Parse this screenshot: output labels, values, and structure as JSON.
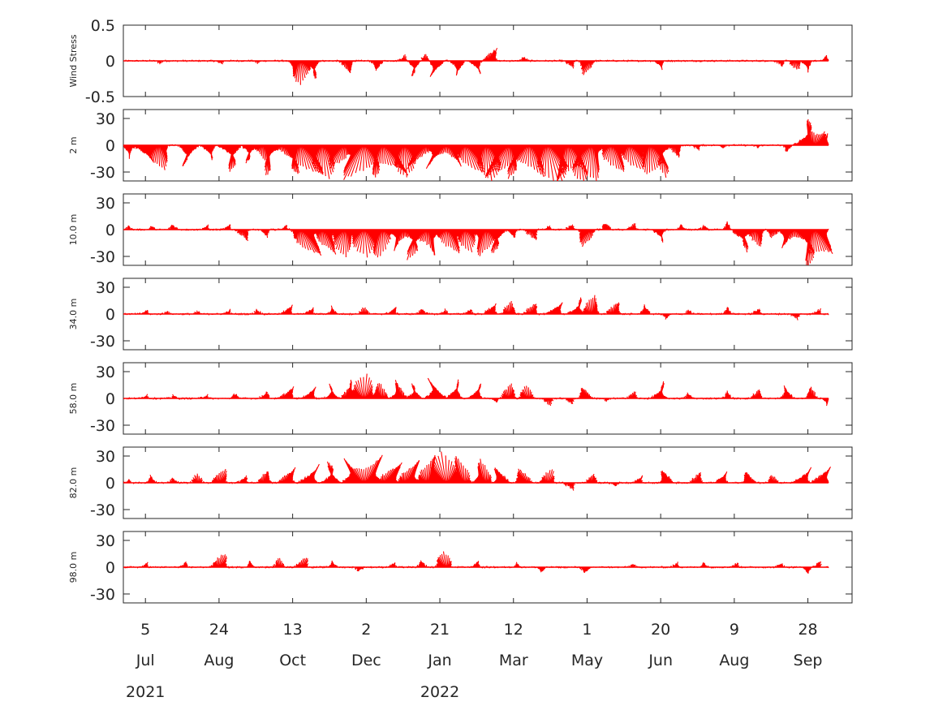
{
  "chart_data": {
    "type": "stick-vector",
    "x_axis": {
      "tick_days": [
        "5",
        "24",
        "13",
        "2",
        "21",
        "12",
        "1",
        "20",
        "9",
        "28"
      ],
      "tick_months": [
        "Jul",
        "Aug",
        "Oct",
        "Dec",
        "Jan",
        "Mar",
        "May",
        "Jun",
        "Aug",
        "Sep"
      ],
      "tick_dates": [
        "2021-07-05",
        "2021-08-24",
        "2021-10-13",
        "2021-12-02",
        "2022-01-21",
        "2022-03-12",
        "2022-05-01",
        "2022-06-20",
        "2022-08-09",
        "2022-09-28"
      ],
      "years": [
        {
          "label": "2021",
          "at": "2021-07-05"
        },
        {
          "label": "2022",
          "at": "2022-01-21"
        }
      ],
      "xlim": [
        "2021-06-20",
        "2022-10-28"
      ],
      "data_start": "2021-06-20",
      "data_end": "2022-10-12"
    },
    "color": "#ff0000",
    "panels": [
      {
        "ylabel": "Wind Stress",
        "ylim": [
          -0.5,
          0.5
        ],
        "yticks": [
          "0.5",
          "0",
          "-0.5"
        ],
        "ytick_values": [
          0.5,
          0,
          -0.5
        ],
        "episodes": [
          [
            "2021-07-15",
            -0.04
          ],
          [
            "2021-08-25",
            -0.05
          ],
          [
            "2021-09-20",
            -0.04
          ],
          [
            "2021-10-18",
            -0.33
          ],
          [
            "2021-10-27",
            -0.26
          ],
          [
            "2021-11-20",
            -0.18
          ],
          [
            "2021-12-10",
            -0.15
          ],
          [
            "2021-12-28",
            0.08
          ],
          [
            "2022-01-05",
            -0.22
          ],
          [
            "2022-01-12",
            0.1
          ],
          [
            "2022-01-20",
            -0.26
          ],
          [
            "2022-02-03",
            -0.22
          ],
          [
            "2022-02-15",
            -0.2
          ],
          [
            "2022-02-25",
            0.19
          ],
          [
            "2022-03-20",
            0.06
          ],
          [
            "2022-04-20",
            -0.1
          ],
          [
            "2022-05-02",
            -0.2
          ],
          [
            "2022-06-20",
            -0.12
          ],
          [
            "2022-09-10",
            -0.08
          ],
          [
            "2022-09-20",
            -0.13
          ],
          [
            "2022-09-28",
            -0.16
          ],
          [
            "2022-10-10",
            0.08
          ]
        ]
      },
      {
        "ylabel": "2 m",
        "ylim": [
          -40,
          40
        ],
        "yticks": [
          "30",
          "0",
          "-30"
        ],
        "ytick_values": [
          30,
          0,
          -30
        ],
        "episodes": [
          [
            "2021-06-24",
            -15
          ],
          [
            "2021-07-05",
            -22
          ],
          [
            "2021-07-15",
            -28
          ],
          [
            "2021-08-05",
            -25
          ],
          [
            "2021-08-18",
            -18
          ],
          [
            "2021-09-02",
            -30
          ],
          [
            "2021-09-15",
            -20
          ],
          [
            "2021-09-28",
            -34
          ],
          [
            "2021-10-12",
            -30
          ],
          [
            "2021-10-22",
            -40
          ],
          [
            "2021-11-03",
            -38
          ],
          [
            "2021-11-15",
            -28
          ],
          [
            "2021-11-28",
            -40
          ],
          [
            "2021-12-08",
            -34
          ],
          [
            "2021-12-18",
            -38
          ],
          [
            "2021-12-28",
            -36
          ],
          [
            "2022-01-08",
            -30
          ],
          [
            "2022-01-20",
            -28
          ],
          [
            "2022-01-30",
            -24
          ],
          [
            "2022-02-10",
            -34
          ],
          [
            "2022-02-22",
            -38
          ],
          [
            "2022-03-05",
            -40
          ],
          [
            "2022-03-15",
            -36
          ],
          [
            "2022-03-25",
            -34
          ],
          [
            "2022-04-05",
            -40
          ],
          [
            "2022-04-15",
            -40
          ],
          [
            "2022-04-25",
            -38
          ],
          [
            "2022-05-05",
            -40
          ],
          [
            "2022-05-20",
            -32
          ],
          [
            "2022-06-01",
            -30
          ],
          [
            "2022-06-12",
            -26
          ],
          [
            "2022-06-20",
            -36
          ],
          [
            "2022-07-01",
            -14
          ],
          [
            "2022-07-15",
            -5
          ],
          [
            "2022-08-01",
            -3
          ],
          [
            "2022-08-25",
            -3
          ],
          [
            "2022-09-15",
            -8
          ],
          [
            "2022-09-28",
            30
          ],
          [
            "2022-10-05",
            16
          ],
          [
            "2022-10-10",
            12
          ]
        ]
      },
      {
        "ylabel": "10.0 m",
        "ylim": [
          -40,
          40
        ],
        "yticks": [
          "30",
          "0",
          "-30"
        ],
        "ytick_values": [
          30,
          0,
          -30
        ],
        "episodes": [
          [
            "2021-06-24",
            5
          ],
          [
            "2021-07-10",
            4
          ],
          [
            "2021-07-25",
            7
          ],
          [
            "2021-08-15",
            5
          ],
          [
            "2021-08-30",
            6
          ],
          [
            "2021-09-10",
            -12
          ],
          [
            "2021-09-25",
            -8
          ],
          [
            "2021-10-08",
            5
          ],
          [
            "2021-10-22",
            -34
          ],
          [
            "2021-11-05",
            -28
          ],
          [
            "2021-11-18",
            -30
          ],
          [
            "2021-12-01",
            -30
          ],
          [
            "2021-12-12",
            -32
          ],
          [
            "2021-12-24",
            -25
          ],
          [
            "2022-01-05",
            -34
          ],
          [
            "2022-01-16",
            -30
          ],
          [
            "2022-01-28",
            -28
          ],
          [
            "2022-02-08",
            -25
          ],
          [
            "2022-02-20",
            -30
          ],
          [
            "2022-03-02",
            -28
          ],
          [
            "2022-03-12",
            -10
          ],
          [
            "2022-03-25",
            -12
          ],
          [
            "2022-04-05",
            5
          ],
          [
            "2022-04-20",
            6
          ],
          [
            "2022-05-02",
            -20
          ],
          [
            "2022-05-15",
            8
          ],
          [
            "2022-06-01",
            7
          ],
          [
            "2022-06-20",
            -15
          ],
          [
            "2022-07-05",
            7
          ],
          [
            "2022-07-20",
            5
          ],
          [
            "2022-08-05",
            8
          ],
          [
            "2022-08-15",
            -25
          ],
          [
            "2022-08-25",
            -20
          ],
          [
            "2022-09-05",
            -10
          ],
          [
            "2022-09-15",
            -22
          ],
          [
            "2022-09-28",
            -38
          ],
          [
            "2022-10-06",
            -30
          ]
        ]
      },
      {
        "ylabel": "34.0 m",
        "ylim": [
          -40,
          40
        ],
        "yticks": [
          "30",
          "0",
          "-30"
        ],
        "ytick_values": [
          30,
          0,
          -30
        ],
        "episodes": [
          [
            "2021-07-05",
            5
          ],
          [
            "2021-07-20",
            4
          ],
          [
            "2021-08-10",
            3
          ],
          [
            "2021-08-30",
            5
          ],
          [
            "2021-09-20",
            6
          ],
          [
            "2021-10-10",
            10
          ],
          [
            "2021-10-25",
            8
          ],
          [
            "2021-11-10",
            9
          ],
          [
            "2021-12-01",
            8
          ],
          [
            "2021-12-20",
            9
          ],
          [
            "2022-01-10",
            7
          ],
          [
            "2022-01-25",
            5
          ],
          [
            "2022-02-10",
            6
          ],
          [
            "2022-02-25",
            12
          ],
          [
            "2022-03-10",
            14
          ],
          [
            "2022-03-25",
            13
          ],
          [
            "2022-04-10",
            15
          ],
          [
            "2022-04-25",
            18
          ],
          [
            "2022-05-05",
            20
          ],
          [
            "2022-05-20",
            14
          ],
          [
            "2022-06-10",
            10
          ],
          [
            "2022-06-25",
            -6
          ],
          [
            "2022-07-10",
            5
          ],
          [
            "2022-08-05",
            8
          ],
          [
            "2022-08-25",
            6
          ],
          [
            "2022-09-20",
            -6
          ],
          [
            "2022-10-05",
            6
          ]
        ]
      },
      {
        "ylabel": "58.0 m",
        "ylim": [
          -40,
          40
        ],
        "yticks": [
          "30",
          "0",
          "-30"
        ],
        "ytick_values": [
          30,
          0,
          -30
        ],
        "episodes": [
          [
            "2021-07-05",
            5
          ],
          [
            "2021-07-25",
            4
          ],
          [
            "2021-08-15",
            5
          ],
          [
            "2021-09-05",
            6
          ],
          [
            "2021-09-25",
            8
          ],
          [
            "2021-10-10",
            14
          ],
          [
            "2021-10-25",
            15
          ],
          [
            "2021-11-10",
            16
          ],
          [
            "2021-11-22",
            20
          ],
          [
            "2021-12-01",
            27
          ],
          [
            "2021-12-12",
            18
          ],
          [
            "2021-12-25",
            20
          ],
          [
            "2022-01-05",
            18
          ],
          [
            "2022-01-20",
            25
          ],
          [
            "2022-02-01",
            20
          ],
          [
            "2022-02-15",
            18
          ],
          [
            "2022-02-28",
            -5
          ],
          [
            "2022-03-10",
            16
          ],
          [
            "2022-03-22",
            15
          ],
          [
            "2022-04-05",
            -8
          ],
          [
            "2022-04-20",
            -6
          ],
          [
            "2022-05-01",
            14
          ],
          [
            "2022-05-15",
            -4
          ],
          [
            "2022-06-01",
            8
          ],
          [
            "2022-06-20",
            18
          ],
          [
            "2022-07-10",
            6
          ],
          [
            "2022-08-05",
            8
          ],
          [
            "2022-08-25",
            10
          ],
          [
            "2022-09-15",
            14
          ],
          [
            "2022-10-01",
            12
          ],
          [
            "2022-10-12",
            -8
          ]
        ]
      },
      {
        "ylabel": "82.0 m",
        "ylim": [
          -40,
          40
        ],
        "yticks": [
          "30",
          "0",
          "-30"
        ],
        "ytick_values": [
          30,
          0,
          -30
        ],
        "episodes": [
          [
            "2021-06-24",
            4
          ],
          [
            "2021-07-10",
            8
          ],
          [
            "2021-07-25",
            6
          ],
          [
            "2021-08-10",
            10
          ],
          [
            "2021-08-25",
            16
          ],
          [
            "2021-09-10",
            8
          ],
          [
            "2021-09-25",
            14
          ],
          [
            "2021-10-10",
            18
          ],
          [
            "2021-10-25",
            22
          ],
          [
            "2021-11-10",
            24
          ],
          [
            "2021-11-25",
            28
          ],
          [
            "2021-12-05",
            34
          ],
          [
            "2021-12-18",
            26
          ],
          [
            "2022-01-01",
            28
          ],
          [
            "2022-01-15",
            30
          ],
          [
            "2022-01-25",
            34
          ],
          [
            "2022-02-05",
            30
          ],
          [
            "2022-02-20",
            26
          ],
          [
            "2022-03-05",
            20
          ],
          [
            "2022-03-20",
            18
          ],
          [
            "2022-04-05",
            15
          ],
          [
            "2022-04-20",
            -8
          ],
          [
            "2022-05-05",
            10
          ],
          [
            "2022-05-20",
            -4
          ],
          [
            "2022-06-05",
            8
          ],
          [
            "2022-06-25",
            16
          ],
          [
            "2022-07-15",
            12
          ],
          [
            "2022-08-01",
            14
          ],
          [
            "2022-08-20",
            14
          ],
          [
            "2022-09-05",
            10
          ],
          [
            "2022-09-25",
            18
          ],
          [
            "2022-10-08",
            20
          ]
        ]
      },
      {
        "ylabel": "98.0 m",
        "ylim": [
          -40,
          40
        ],
        "yticks": [
          "30",
          "0",
          "-30"
        ],
        "ytick_values": [
          30,
          0,
          -30
        ],
        "episodes": [
          [
            "2021-07-05",
            5
          ],
          [
            "2021-08-01",
            5
          ],
          [
            "2021-08-25",
            16
          ],
          [
            "2021-09-15",
            8
          ],
          [
            "2021-10-05",
            10
          ],
          [
            "2021-10-20",
            12
          ],
          [
            "2021-11-10",
            8
          ],
          [
            "2021-11-28",
            -5
          ],
          [
            "2021-12-20",
            6
          ],
          [
            "2022-01-10",
            7
          ],
          [
            "2022-01-25",
            18
          ],
          [
            "2022-02-15",
            8
          ],
          [
            "2022-03-15",
            5
          ],
          [
            "2022-04-01",
            -6
          ],
          [
            "2022-05-01",
            -8
          ],
          [
            "2022-06-01",
            4
          ],
          [
            "2022-07-01",
            5
          ],
          [
            "2022-07-20",
            6
          ],
          [
            "2022-08-10",
            5
          ],
          [
            "2022-09-10",
            5
          ],
          [
            "2022-09-28",
            -8
          ],
          [
            "2022-10-05",
            6
          ]
        ]
      }
    ]
  }
}
